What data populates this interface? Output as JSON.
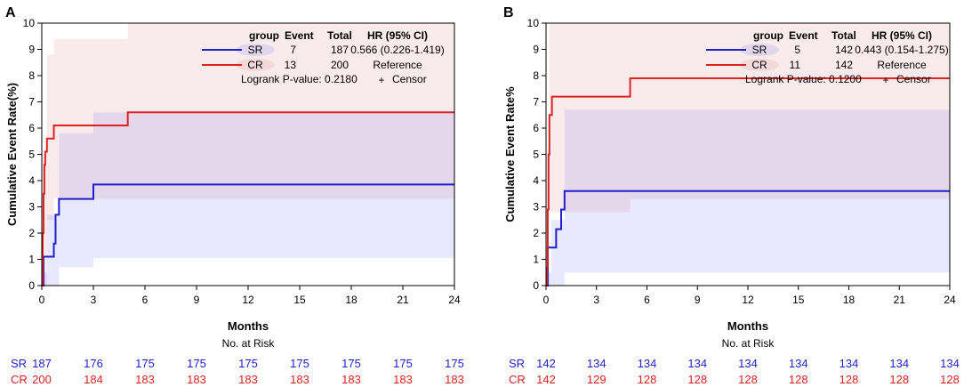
{
  "chart_data": [
    {
      "type": "line",
      "panel_label": "A",
      "xlabel": "Months",
      "ylabel": "Cumulative Event Rate(%)",
      "xlim": [
        0,
        24
      ],
      "ylim": [
        0,
        10
      ],
      "xticks": [
        "0",
        "3",
        "6",
        "9",
        "12",
        "15",
        "18",
        "21",
        "24"
      ],
      "yticks": [
        "0",
        "1",
        "2",
        "3",
        "4",
        "5",
        "6",
        "7",
        "8",
        "9",
        "10"
      ],
      "legend": {
        "headers": [
          "group",
          "Event",
          "Total",
          "HR (95% CI)"
        ],
        "rows": [
          {
            "group": "SR",
            "event": "7",
            "total": "187",
            "hr": "0.566 (0.226-1.419)"
          },
          {
            "group": "CR",
            "event": "13",
            "total": "200",
            "hr": "Reference"
          }
        ],
        "logrank": "Logrank P-value: 0.2180",
        "censor": "Censor"
      },
      "series": [
        {
          "name": "SR",
          "color": "#1f1fcc",
          "steps": [
            [
              0,
              0
            ],
            [
              0.1,
              1.1
            ],
            [
              0.7,
              1.6
            ],
            [
              0.8,
              2.7
            ],
            [
              1.0,
              3.3
            ],
            [
              3.0,
              3.85
            ],
            [
              24,
              3.85
            ]
          ],
          "band": [
            [
              0,
              0,
              0.5
            ],
            [
              0.3,
              0,
              2.7
            ],
            [
              1.0,
              0.7,
              5.8
            ],
            [
              3.0,
              1.05,
              6.6
            ],
            [
              24,
              1.05,
              6.6
            ]
          ]
        },
        {
          "name": "CR",
          "color": "#dd2222",
          "steps": [
            [
              0,
              0
            ],
            [
              0.05,
              2.0
            ],
            [
              0.1,
              3.5
            ],
            [
              0.15,
              4.6
            ],
            [
              0.2,
              5.1
            ],
            [
              0.3,
              5.6
            ],
            [
              0.7,
              6.1
            ],
            [
              5.0,
              6.6
            ],
            [
              24,
              6.6
            ]
          ],
          "band": [
            [
              0,
              0,
              5.0
            ],
            [
              0.3,
              2.5,
              8.8
            ],
            [
              0.7,
              3.3,
              9.4
            ],
            [
              5.0,
              3.3,
              10.0
            ],
            [
              24,
              3.3,
              10.0
            ]
          ]
        }
      ],
      "risk_table": {
        "title": "No. at Risk",
        "rows": [
          {
            "group": "SR",
            "values": [
              "187",
              "176",
              "175",
              "175",
              "175",
              "175",
              "175",
              "175",
              "175"
            ]
          },
          {
            "group": "CR",
            "values": [
              "200",
              "184",
              "183",
              "183",
              "183",
              "183",
              "183",
              "183",
              "183"
            ]
          }
        ]
      }
    },
    {
      "type": "line",
      "panel_label": "B",
      "xlabel": "Months",
      "ylabel": "Cumulative Event Rate%",
      "xlim": [
        0,
        24
      ],
      "ylim": [
        0,
        10
      ],
      "xticks": [
        "0",
        "3",
        "6",
        "9",
        "12",
        "15",
        "18",
        "21",
        "24"
      ],
      "yticks": [
        "0",
        "1",
        "2",
        "3",
        "4",
        "5",
        "6",
        "7",
        "8",
        "9",
        "10"
      ],
      "legend": {
        "headers": [
          "group",
          "Event",
          "Total",
          "HR (95% CI)"
        ],
        "rows": [
          {
            "group": "SR",
            "event": "5",
            "total": "142",
            "hr": "0.443 (0.154-1.275)"
          },
          {
            "group": "CR",
            "event": "11",
            "total": "142",
            "hr": "Reference"
          }
        ],
        "logrank": "Logrank P-value: 0.1200",
        "censor": "Censor"
      },
      "series": [
        {
          "name": "SR",
          "color": "#1f1fcc",
          "steps": [
            [
              0,
              0
            ],
            [
              0.1,
              1.45
            ],
            [
              0.6,
              2.15
            ],
            [
              0.9,
              2.9
            ],
            [
              1.1,
              3.6
            ],
            [
              24,
              3.6
            ]
          ],
          "band": [
            [
              0,
              0,
              0.5
            ],
            [
              0.3,
              0,
              2.5
            ],
            [
              1.1,
              0.5,
              6.7
            ],
            [
              24,
              0.5,
              6.7
            ]
          ]
        },
        {
          "name": "CR",
          "color": "#dd2222",
          "steps": [
            [
              0,
              0
            ],
            [
              0.05,
              0.7
            ],
            [
              0.1,
              2.9
            ],
            [
              0.15,
              5.0
            ],
            [
              0.2,
              6.5
            ],
            [
              0.35,
              7.2
            ],
            [
              5.0,
              7.9
            ],
            [
              24,
              7.9
            ]
          ],
          "band": [
            [
              0,
              0,
              5.0
            ],
            [
              0.2,
              2.8,
              10.0
            ],
            [
              5.0,
              3.3,
              10.0
            ],
            [
              24,
              3.3,
              10.0
            ]
          ]
        }
      ],
      "risk_table": {
        "title": "No. at Risk",
        "rows": [
          {
            "group": "SR",
            "values": [
              "142",
              "134",
              "134",
              "134",
              "134",
              "134",
              "134",
              "134",
              "134"
            ]
          },
          {
            "group": "CR",
            "values": [
              "142",
              "129",
              "128",
              "128",
              "128",
              "128",
              "128",
              "128",
              "128"
            ]
          }
        ]
      }
    }
  ]
}
